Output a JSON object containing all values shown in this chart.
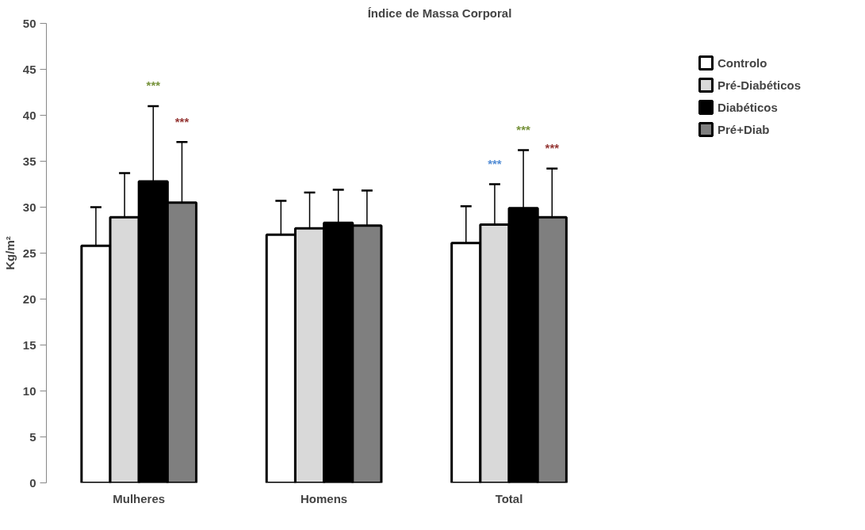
{
  "chart_data": {
    "type": "bar",
    "title": "Índice de Massa Corporal",
    "ylabel": "Kg/m²",
    "categories": [
      "Mulheres",
      "Homens",
      "Total"
    ],
    "series": [
      {
        "name": "Controlo",
        "color": "#ffffff",
        "values": [
          25.8,
          27.0,
          26.1
        ],
        "errors": [
          4.2,
          3.7,
          4.0
        ]
      },
      {
        "name": "Pré-Diabéticos",
        "color": "#d9d9d9",
        "values": [
          28.9,
          27.7,
          28.1
        ],
        "errors": [
          4.8,
          3.9,
          4.4
        ]
      },
      {
        "name": "Diabéticos",
        "color": "#000000",
        "values": [
          32.8,
          28.3,
          29.9
        ],
        "errors": [
          8.2,
          3.6,
          6.3
        ]
      },
      {
        "name": "Pré+Diab",
        "color": "#7f7f7f",
        "values": [
          30.5,
          28.0,
          28.9
        ],
        "errors": [
          6.6,
          3.8,
          5.3
        ]
      }
    ],
    "ylim": [
      0,
      50
    ],
    "yticks": [
      0,
      5,
      10,
      15,
      20,
      25,
      30,
      35,
      40,
      45,
      50
    ],
    "grid": false,
    "legend": "right",
    "annotations": [
      "***",
      "***",
      "***",
      "***",
      "***"
    ]
  }
}
